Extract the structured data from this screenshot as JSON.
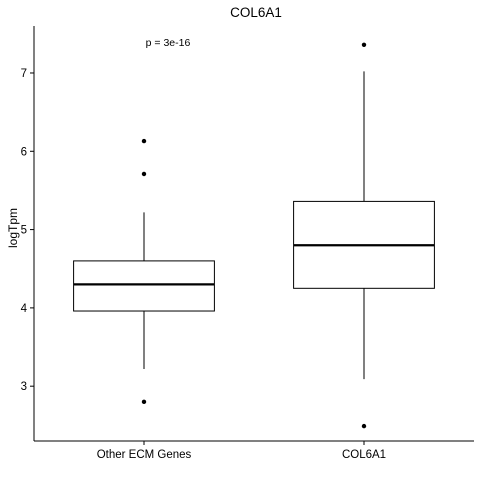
{
  "chart_data": {
    "type": "box",
    "title": "COL6A1",
    "xlabel": "",
    "ylabel": "logTpm",
    "ylim": [
      2.3,
      7.6
    ],
    "yticks": [
      3,
      4,
      5,
      6,
      7
    ],
    "grid": false,
    "annotation": "p = 3e-16",
    "categories": [
      "Other ECM Genes",
      "COL6A1"
    ],
    "boxes": [
      {
        "category": "Other ECM Genes",
        "whisker_low": 3.22,
        "q1": 3.96,
        "median": 4.3,
        "q3": 4.6,
        "whisker_high": 5.22,
        "outliers": [
          2.8,
          5.71,
          6.13
        ]
      },
      {
        "category": "COL6A1",
        "whisker_low": 3.09,
        "q1": 4.25,
        "median": 4.8,
        "q3": 5.36,
        "whisker_high": 7.02,
        "outliers": [
          2.49,
          7.36
        ]
      }
    ]
  }
}
